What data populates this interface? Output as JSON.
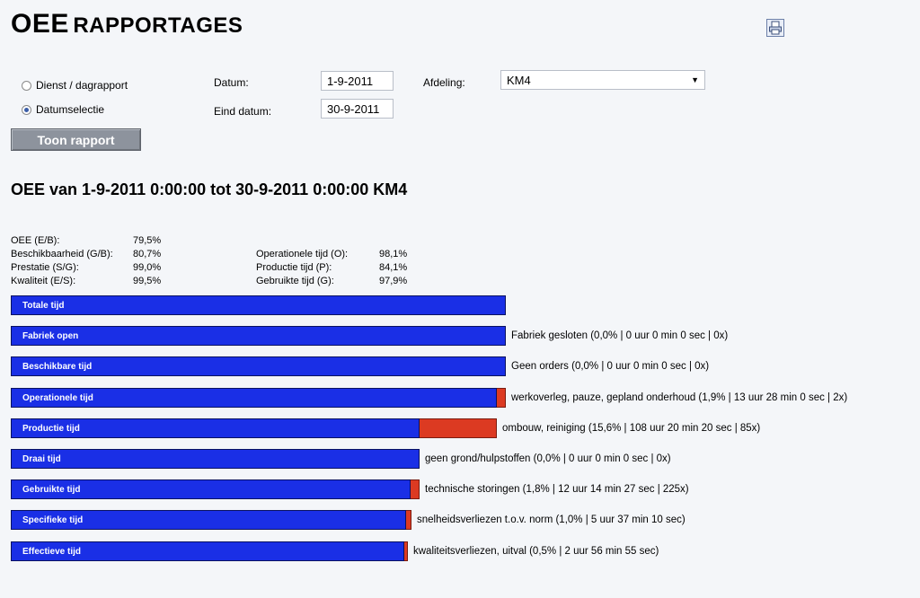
{
  "header": {
    "title_main": "OEE",
    "title_sub": "RAPPORTAGES",
    "print_icon": "printer-icon"
  },
  "form": {
    "radio_options": [
      {
        "label": "Dienst / dagrapport",
        "checked": false
      },
      {
        "label": "Datumselectie",
        "checked": true
      }
    ],
    "datum_label": "Datum:",
    "datum_value": "1-9-2011",
    "eind_datum_label": "Eind datum:",
    "eind_datum_value": "30-9-2011",
    "afdeling_label": "Afdeling:",
    "afdeling_value": "KM4",
    "submit_label": "Toon rapport"
  },
  "report": {
    "title": "OEE van 1-9-2011 0:00:00 tot 30-9-2011 0:00:00 KM4",
    "stats_left": [
      {
        "label": "OEE (E/B):",
        "value": "79,5%"
      },
      {
        "label": "Beschikbaarheid (G/B):",
        "value": "80,7%"
      },
      {
        "label": "Prestatie (S/G):",
        "value": "99,0%"
      },
      {
        "label": "Kwaliteit (E/S):",
        "value": "99,5%"
      }
    ],
    "stats_right": [
      {
        "label": "Operationele tijd (O):",
        "value": "98,1%"
      },
      {
        "label": "Productie tijd (P):",
        "value": "84,1%"
      },
      {
        "label": "Gebruikte tijd (G):",
        "value": "97,9%"
      }
    ]
  },
  "chart_data": {
    "type": "bar",
    "categories": [
      "Totale tijd",
      "Fabriek open",
      "Beschikbare tijd",
      "Operationele tijd",
      "Productie tijd",
      "Draai tijd",
      "Gebruikte tijd",
      "Specifieke tijd",
      "Effectieve tijd"
    ],
    "values_percent_of_total": [
      100,
      100,
      100,
      98.1,
      82.5,
      82.5,
      80.7,
      79.8,
      79.5
    ],
    "loss_percent": [
      0,
      0,
      0,
      1.9,
      15.6,
      0,
      1.8,
      1.0,
      0.5
    ],
    "loss_texts": [
      "",
      "Fabriek gesloten (0,0% | 0 uur 0 min 0 sec | 0x)",
      "Geen orders (0,0% | 0 uur 0 min 0 sec | 0x)",
      "werkoverleg, pauze, gepland onderhoud (1,9% | 13 uur 28 min 0 sec | 2x)",
      "ombouw, reiniging (15,6% | 108 uur 20 min 20 sec | 85x)",
      "geen grond/hulpstoffen (0,0% | 0 uur 0 min 0 sec | 0x)",
      "technische storingen (1,8% | 12 uur 14 min 27 sec | 225x)",
      "snelheidsverliezen t.o.v. norm (1,0% | 5 uur 37 min 10 sec)",
      "kwaliteitsverliezen, uitval (0,5% | 2 uur 56 min 55 sec)"
    ],
    "colors": {
      "bar": "#1a2fe6",
      "loss": "#dc3a22"
    }
  }
}
